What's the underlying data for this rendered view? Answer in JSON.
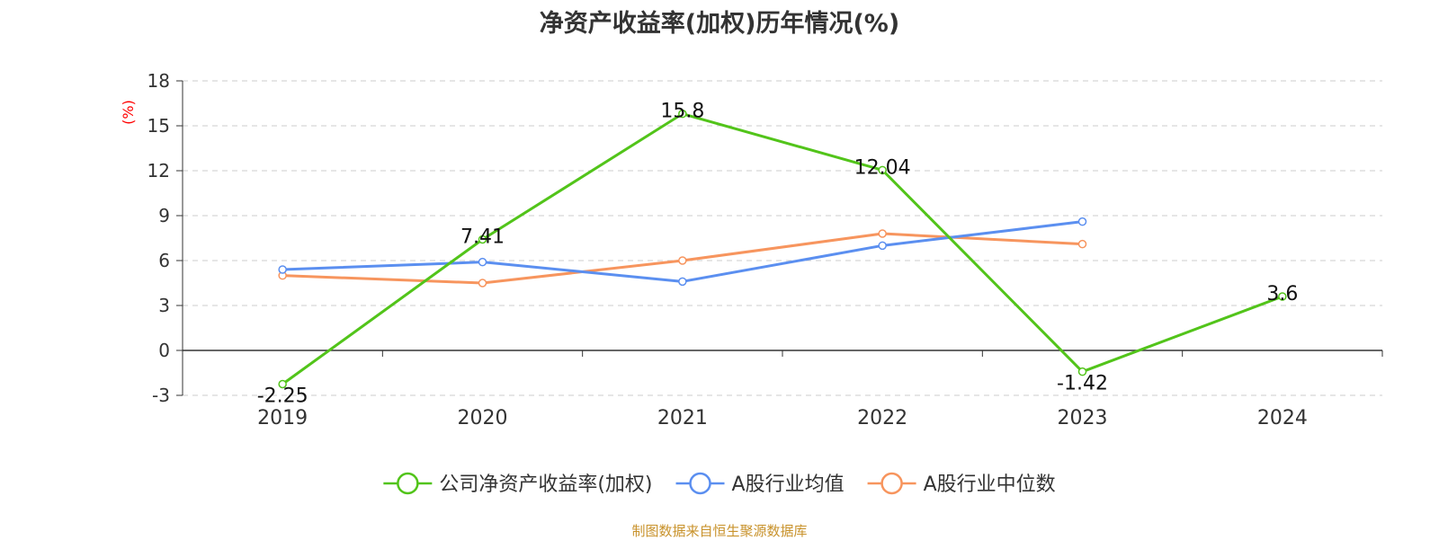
{
  "title": "净资产收益率(加权)历年情况(%)",
  "source_note": "制图数据来自恒生聚源数据库",
  "chart_data": {
    "type": "line",
    "title": "净资产收益率(加权)历年情况(%)",
    "xlabel": "",
    "ylabel": "(%)",
    "ylabel_color": "#ff0000",
    "categories": [
      "2019",
      "2020",
      "2021",
      "2022",
      "2023",
      "2024"
    ],
    "ylim": [
      -3,
      18
    ],
    "yticks": [
      "-3",
      "0",
      "3",
      "6",
      "9",
      "12",
      "15",
      "18"
    ],
    "grid": true,
    "legend_position": "bottom",
    "series": [
      {
        "name": "公司净资产收益率(加权)",
        "color": "#52c41a",
        "values": [
          -2.25,
          7.41,
          15.8,
          12.04,
          -1.42,
          3.6
        ],
        "labels": [
          "-2.25",
          "7.41",
          "15.8",
          "12.04",
          "-1.42",
          "3.6"
        ]
      },
      {
        "name": "A股行业均值",
        "color": "#5b8ff0",
        "values": [
          5.4,
          5.9,
          4.6,
          7.0,
          8.6,
          null
        ]
      },
      {
        "name": "A股行业中位数",
        "color": "#f7955e",
        "values": [
          5.0,
          4.5,
          6.0,
          7.8,
          7.1,
          null
        ]
      }
    ]
  }
}
